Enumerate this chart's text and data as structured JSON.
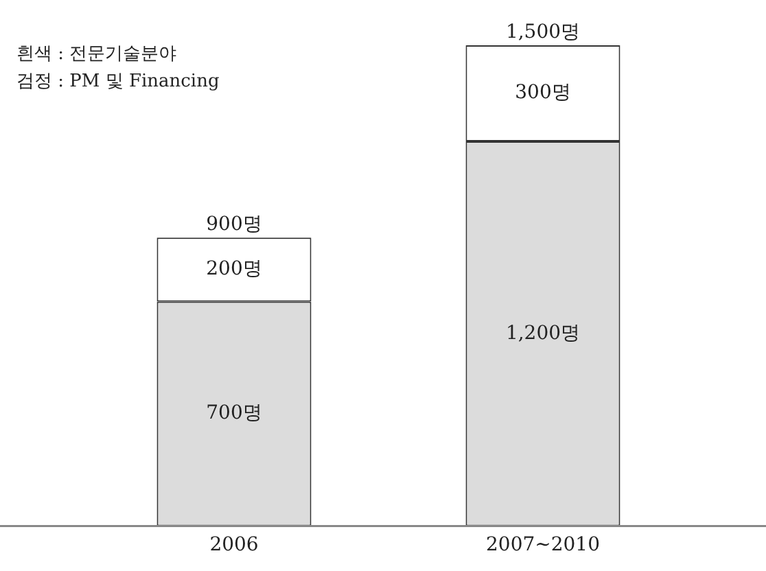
{
  "chart_data": {
    "type": "bar",
    "stacked": true,
    "categories": [
      "2006",
      "2007~2010"
    ],
    "series": [
      {
        "color": "#dcdcdc",
        "values": [
          700,
          1200
        ],
        "value_labels": [
          "700명",
          "1,200명"
        ]
      },
      {
        "color": "#ffffff",
        "values": [
          200,
          300
        ],
        "value_labels": [
          "200명",
          "300명"
        ]
      }
    ],
    "totals": [
      "900명",
      "1,500명"
    ],
    "annotations": [
      "흰색 : 전문기술분야",
      "검정 : PM 및 Financing"
    ],
    "grid": false,
    "tick_labels": "x"
  }
}
